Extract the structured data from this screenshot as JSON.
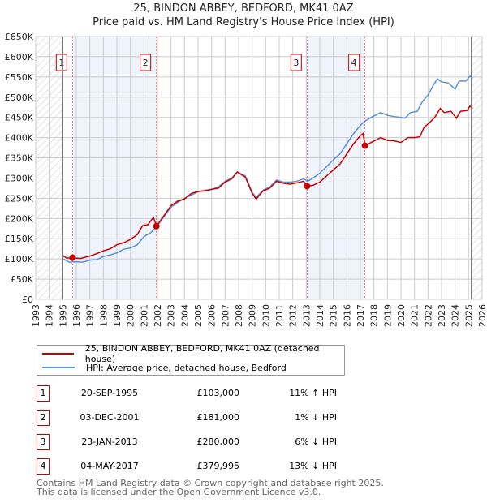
{
  "chart_data": {
    "type": "line",
    "title": "25, BINDON ABBEY, BEDFORD, MK41 0AZ",
    "subtitle": "Price paid vs. HM Land Registry's House Price Index (HPI)",
    "xlim": [
      1993,
      2026
    ],
    "ylim": [
      0,
      650000
    ],
    "y_ticks": [
      0,
      50000,
      100000,
      150000,
      200000,
      250000,
      300000,
      350000,
      400000,
      450000,
      500000,
      550000,
      600000,
      650000
    ],
    "y_tick_labels": [
      "£0",
      "£50K",
      "£100K",
      "£150K",
      "£200K",
      "£250K",
      "£300K",
      "£350K",
      "£400K",
      "£450K",
      "£500K",
      "£550K",
      "£600K",
      "£650K"
    ],
    "x_ticks": [
      1993,
      1994,
      1995,
      1996,
      1997,
      1998,
      1999,
      2000,
      2001,
      2002,
      2003,
      2004,
      2005,
      2006,
      2007,
      2008,
      2009,
      2010,
      2011,
      2012,
      2013,
      2014,
      2015,
      2016,
      2017,
      2018,
      2019,
      2020,
      2021,
      2022,
      2023,
      2024,
      2025,
      2026
    ],
    "grid": true,
    "hatched_ranges": [
      [
        1993,
        1995
      ],
      [
        2025.2,
        2026
      ]
    ],
    "shaded_ranges": [
      [
        1995.72,
        2001.92
      ],
      [
        2013.06,
        2017.34
      ]
    ],
    "series": [
      {
        "name": "25, BINDON ABBEY, BEDFORD, MK41 0AZ (detached house)",
        "color": "#cc0000",
        "x": [
          1995.0,
          1995.3,
          1995.72,
          1996.3,
          1997,
          1997.5,
          1998,
          1998.5,
          1999,
          1999.5,
          2000,
          2000.5,
          2000.9,
          2001.3,
          2001.7,
          2001.92,
          2002.5,
          2003,
          2003.5,
          2004,
          2004.5,
          2005,
          2005.5,
          2006,
          2006.5,
          2007,
          2007.5,
          2007.9,
          2008.5,
          2009,
          2009.3,
          2009.8,
          2010.3,
          2010.8,
          2011.3,
          2011.8,
          2012.3,
          2012.8,
          2013.06,
          2013.5,
          2014,
          2014.5,
          2015,
          2015.5,
          2016,
          2016.5,
          2017,
          2017.2,
          2017.34,
          2017.8,
          2018.5,
          2019,
          2019.5,
          2020,
          2020.5,
          2021,
          2021.4,
          2021.7,
          2022.2,
          2022.5,
          2022.9,
          2023.2,
          2023.7,
          2024.1,
          2024.4,
          2024.9,
          2025.1,
          2025.3
        ],
        "y": [
          108000,
          102000,
          103000,
          101000,
          107000,
          113000,
          120000,
          125000,
          135000,
          140000,
          148000,
          160000,
          182000,
          185000,
          203000,
          181000,
          208000,
          232000,
          243000,
          248000,
          262000,
          267000,
          268000,
          272000,
          275000,
          290000,
          298000,
          315000,
          302000,
          262000,
          248000,
          268000,
          275000,
          292000,
          287000,
          285000,
          288000,
          292000,
          280000,
          282000,
          290000,
          305000,
          320000,
          335000,
          360000,
          385000,
          405000,
          410000,
          379995,
          388000,
          400000,
          393000,
          392000,
          388000,
          400000,
          400000,
          402000,
          425000,
          440000,
          450000,
          472000,
          462000,
          465000,
          448000,
          465000,
          467000,
          478000,
          472000
        ]
      },
      {
        "name": "HPI: Average price, detached house, Bedford",
        "color": "#5b8fd6",
        "x": [
          1995.0,
          1995.5,
          1996,
          1996.5,
          1997,
          1997.5,
          1998,
          1998.5,
          1999,
          1999.5,
          2000,
          2000.5,
          2001,
          2001.5,
          2001.9,
          2002.5,
          2003,
          2003.5,
          2004,
          2004.5,
          2005,
          2005.5,
          2006,
          2006.5,
          2007,
          2007.5,
          2007.9,
          2008.5,
          2009,
          2009.3,
          2009.8,
          2010.3,
          2010.8,
          2011.3,
          2011.8,
          2012.3,
          2012.8,
          2013.1,
          2013.5,
          2014,
          2014.5,
          2015,
          2015.5,
          2016,
          2016.5,
          2017,
          2017.3,
          2017.8,
          2018.5,
          2019,
          2019.5,
          2020,
          2020.3,
          2020.7,
          2021.2,
          2021.6,
          2022,
          2022.4,
          2022.7,
          2023,
          2023.5,
          2024,
          2024.3,
          2024.8,
          2025.1,
          2025.3
        ],
        "y": [
          100000,
          92000,
          93000,
          92000,
          97000,
          98000,
          106000,
          110000,
          115000,
          124000,
          127000,
          135000,
          155000,
          165000,
          178000,
          205000,
          228000,
          240000,
          250000,
          258000,
          266000,
          270000,
          272000,
          278000,
          292000,
          300000,
          315000,
          305000,
          265000,
          252000,
          270000,
          278000,
          295000,
          290000,
          290000,
          292000,
          298000,
          292000,
          300000,
          312000,
          328000,
          345000,
          360000,
          385000,
          410000,
          430000,
          440000,
          450000,
          462000,
          455000,
          452000,
          450000,
          448000,
          462000,
          465000,
          490000,
          505000,
          530000,
          545000,
          538000,
          535000,
          520000,
          540000,
          540000,
          552000,
          548000
        ]
      }
    ],
    "sales": [
      {
        "num": "1",
        "x": 1995.72,
        "date": "20-SEP-1995",
        "price": "£103,000",
        "price_value": 103000,
        "hpi": "11% ↑ HPI"
      },
      {
        "num": "2",
        "x": 2001.92,
        "date": "03-DEC-2001",
        "price": "£181,000",
        "price_value": 181000,
        "hpi": "1% ↓ HPI"
      },
      {
        "num": "3",
        "x": 2013.06,
        "date": "23-JAN-2013",
        "price": "£280,000",
        "price_value": 280000,
        "hpi": "6% ↓ HPI"
      },
      {
        "num": "4",
        "x": 2017.34,
        "date": "04-MAY-2017",
        "price": "£379,995",
        "price_value": 379995,
        "hpi": "13% ↓ HPI"
      }
    ],
    "legend_position": "bottom"
  },
  "footer": {
    "line1": "Contains HM Land Registry data © Crown copyright and database right 2025.",
    "line2": "This data is licensed under the Open Government Licence v3.0."
  }
}
